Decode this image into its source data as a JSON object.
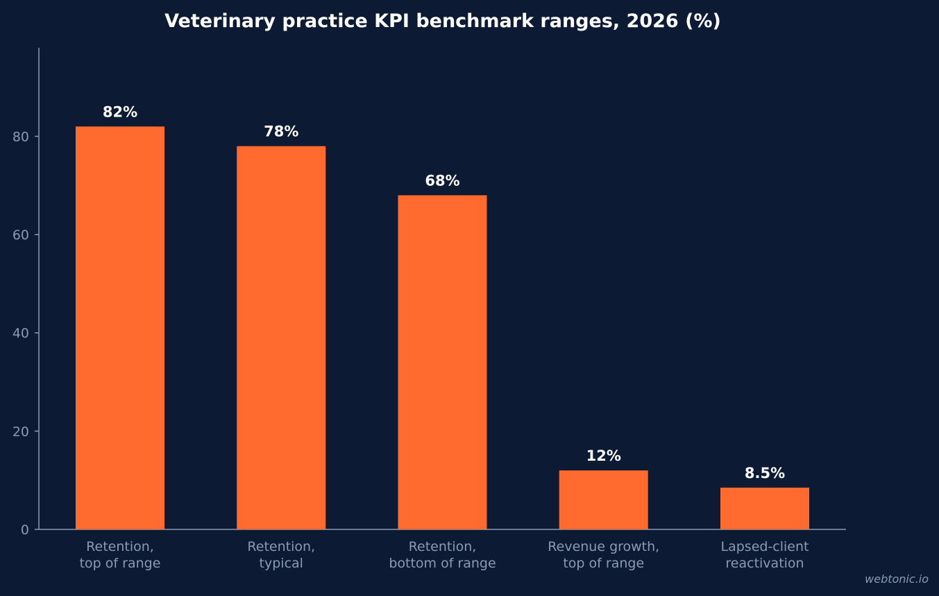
{
  "chart_data": {
    "type": "bar",
    "title": "Veterinary practice KPI benchmark ranges, 2026 (%)",
    "categories": [
      [
        "Retention,",
        "top of range"
      ],
      [
        "Retention,",
        "typical"
      ],
      [
        "Retention,",
        "bottom of range"
      ],
      [
        "Revenue growth,",
        "top of range"
      ],
      [
        "Lapsed-client",
        "reactivation"
      ]
    ],
    "values": [
      82,
      78,
      68,
      12,
      8.5
    ],
    "data_labels": [
      "82%",
      "78%",
      "68%",
      "12%",
      "8.5%"
    ],
    "xlabel": "",
    "ylabel": "",
    "ylim": [
      0,
      98
    ],
    "yticks": [
      0,
      20,
      40,
      60,
      80
    ],
    "grid": false,
    "legend": "none",
    "colors": {
      "bar": "#ff6b2f",
      "background": "#0c1b33",
      "axis": "#8a9bb5",
      "text": "#ffffff"
    }
  },
  "credit": "webtonic.io"
}
